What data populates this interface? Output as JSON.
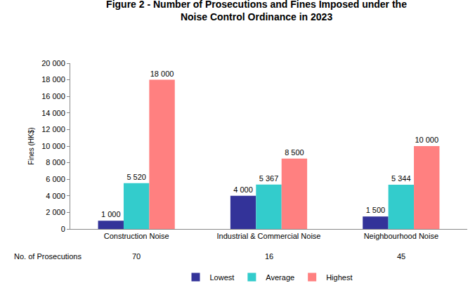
{
  "chart_data": {
    "type": "bar",
    "title": "Figure 2 - Number of Prosecutions and Fines Imposed under the\nNoise Control Ordinance in 2023",
    "y_label": "Fines (HK$)",
    "categories": [
      "Construction Noise",
      "Industrial & Commercial Noise",
      "Neighbourhood Noise"
    ],
    "series": [
      {
        "name": "Lowest",
        "color": "#333399",
        "values": [
          1000,
          4000,
          1500
        ],
        "value_labels": [
          "1 000",
          "4 000",
          "1 500"
        ]
      },
      {
        "name": "Average",
        "color": "#33CCCC",
        "values": [
          5520,
          5367,
          5344
        ],
        "value_labels": [
          "5 520",
          "5 367",
          "5 344"
        ]
      },
      {
        "name": "Highest",
        "color": "#FF8080",
        "values": [
          18000,
          8500,
          10000
        ],
        "value_labels": [
          "18 000",
          "8 500",
          "10 000"
        ]
      }
    ],
    "prosecutions": {
      "label": "No. of Prosecutions",
      "values": [
        70,
        16,
        45
      ]
    },
    "ylim": [
      0,
      20000
    ],
    "yticks": [
      0,
      {
        "value": 2000,
        "label": "2 000"
      },
      {
        "value": 4000,
        "label": "4 000"
      },
      {
        "value": 6000,
        "label": "6 000"
      },
      {
        "value": 8000,
        "label": "8 000"
      },
      {
        "value": 10000,
        "label": "10 000"
      },
      {
        "value": 12000,
        "label": "12 000"
      },
      {
        "value": 14000,
        "label": "14 000"
      },
      {
        "value": 16000,
        "label": "16 000"
      },
      {
        "value": 18000,
        "label": "18 000"
      },
      {
        "value": 20000,
        "label": "20 000"
      }
    ],
    "grid": false,
    "legend": "bottom",
    "data_labels": true
  }
}
